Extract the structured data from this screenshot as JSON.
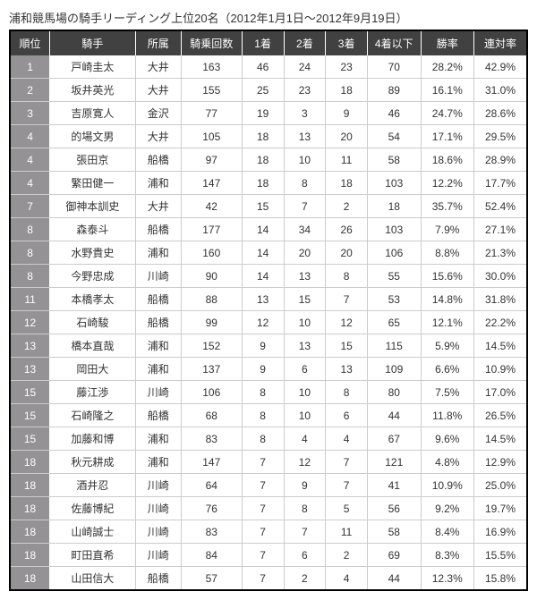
{
  "title": "浦和競馬場の騎手リーディング上位20名（2012年1月1日〜2012年9月19日）",
  "columns": [
    "順位",
    "騎手",
    "所属",
    "騎乗回数",
    "1着",
    "2着",
    "3着",
    "4着以下",
    "勝率",
    "連対率"
  ],
  "rows": [
    [
      "1",
      "戸崎圭太",
      "大井",
      "163",
      "46",
      "24",
      "23",
      "70",
      "28.2%",
      "42.9%"
    ],
    [
      "2",
      "坂井英光",
      "大井",
      "155",
      "25",
      "23",
      "18",
      "89",
      "16.1%",
      "31.0%"
    ],
    [
      "3",
      "吉原寛人",
      "金沢",
      "77",
      "19",
      "3",
      "9",
      "46",
      "24.7%",
      "28.6%"
    ],
    [
      "4",
      "的場文男",
      "大井",
      "105",
      "18",
      "13",
      "20",
      "54",
      "17.1%",
      "29.5%"
    ],
    [
      "4",
      "張田京",
      "船橋",
      "97",
      "18",
      "10",
      "11",
      "58",
      "18.6%",
      "28.9%"
    ],
    [
      "4",
      "繁田健一",
      "浦和",
      "147",
      "18",
      "8",
      "18",
      "103",
      "12.2%",
      "17.7%"
    ],
    [
      "7",
      "御神本訓史",
      "大井",
      "42",
      "15",
      "7",
      "2",
      "18",
      "35.7%",
      "52.4%"
    ],
    [
      "8",
      "森泰斗",
      "船橋",
      "177",
      "14",
      "34",
      "26",
      "103",
      "7.9%",
      "27.1%"
    ],
    [
      "8",
      "水野貴史",
      "浦和",
      "160",
      "14",
      "20",
      "20",
      "106",
      "8.8%",
      "21.3%"
    ],
    [
      "8",
      "今野忠成",
      "川崎",
      "90",
      "14",
      "13",
      "8",
      "55",
      "15.6%",
      "30.0%"
    ],
    [
      "11",
      "本橋孝太",
      "船橋",
      "88",
      "13",
      "15",
      "7",
      "53",
      "14.8%",
      "31.8%"
    ],
    [
      "12",
      "石崎駿",
      "船橋",
      "99",
      "12",
      "10",
      "12",
      "65",
      "12.1%",
      "22.2%"
    ],
    [
      "13",
      "橋本直哉",
      "浦和",
      "152",
      "9",
      "13",
      "15",
      "115",
      "5.9%",
      "14.5%"
    ],
    [
      "13",
      "岡田大",
      "浦和",
      "137",
      "9",
      "6",
      "13",
      "109",
      "6.6%",
      "10.9%"
    ],
    [
      "15",
      "藤江渉",
      "川崎",
      "106",
      "8",
      "10",
      "8",
      "80",
      "7.5%",
      "17.0%"
    ],
    [
      "15",
      "石崎隆之",
      "船橋",
      "68",
      "8",
      "10",
      "6",
      "44",
      "11.8%",
      "26.5%"
    ],
    [
      "15",
      "加藤和博",
      "浦和",
      "83",
      "8",
      "4",
      "4",
      "67",
      "9.6%",
      "14.5%"
    ],
    [
      "18",
      "秋元耕成",
      "浦和",
      "147",
      "7",
      "12",
      "7",
      "121",
      "4.8%",
      "12.9%"
    ],
    [
      "18",
      "酒井忍",
      "川崎",
      "64",
      "7",
      "9",
      "7",
      "41",
      "10.9%",
      "25.0%"
    ],
    [
      "18",
      "佐藤博紀",
      "川崎",
      "76",
      "7",
      "8",
      "5",
      "56",
      "9.2%",
      "19.7%"
    ],
    [
      "18",
      "山崎誠士",
      "川崎",
      "83",
      "7",
      "7",
      "11",
      "58",
      "8.4%",
      "16.9%"
    ],
    [
      "18",
      "町田直希",
      "川崎",
      "84",
      "7",
      "6",
      "2",
      "69",
      "8.3%",
      "15.5%"
    ],
    [
      "18",
      "山田信大",
      "船橋",
      "57",
      "7",
      "2",
      "4",
      "44",
      "12.3%",
      "15.8%"
    ]
  ]
}
